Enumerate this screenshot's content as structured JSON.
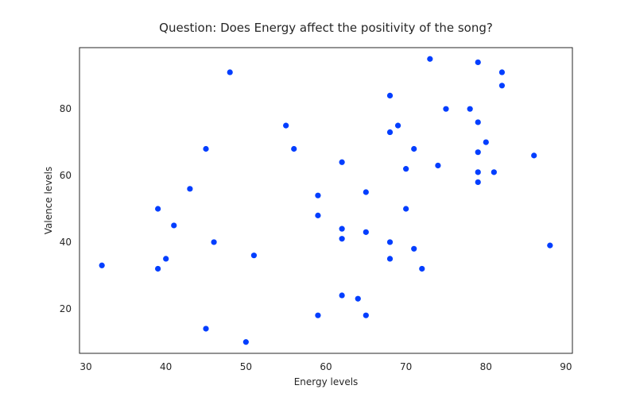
{
  "chart_data": {
    "type": "scatter",
    "title": "Question: Does Energy affect the positivity of the song?",
    "xlabel": "Energy levels",
    "ylabel": "Valence levels",
    "xlim": [
      29.2,
      90.8
    ],
    "ylim": [
      6.6,
      98.4
    ],
    "xticks": [
      30,
      40,
      50,
      60,
      70,
      80,
      90
    ],
    "yticks": [
      20,
      40,
      60,
      80
    ],
    "grid": false,
    "color": "#023eff",
    "points": [
      {
        "x": 32,
        "y": 33
      },
      {
        "x": 39,
        "y": 32
      },
      {
        "x": 39,
        "y": 50
      },
      {
        "x": 40,
        "y": 35
      },
      {
        "x": 41,
        "y": 45
      },
      {
        "x": 43,
        "y": 56
      },
      {
        "x": 45,
        "y": 68
      },
      {
        "x": 45,
        "y": 14
      },
      {
        "x": 46,
        "y": 40
      },
      {
        "x": 48,
        "y": 91
      },
      {
        "x": 50,
        "y": 10
      },
      {
        "x": 51,
        "y": 36
      },
      {
        "x": 55,
        "y": 75
      },
      {
        "x": 56,
        "y": 68
      },
      {
        "x": 59,
        "y": 54
      },
      {
        "x": 59,
        "y": 48
      },
      {
        "x": 59,
        "y": 18
      },
      {
        "x": 62,
        "y": 64
      },
      {
        "x": 62,
        "y": 44
      },
      {
        "x": 62,
        "y": 41
      },
      {
        "x": 62,
        "y": 24
      },
      {
        "x": 64,
        "y": 23
      },
      {
        "x": 65,
        "y": 55
      },
      {
        "x": 65,
        "y": 43
      },
      {
        "x": 65,
        "y": 18
      },
      {
        "x": 68,
        "y": 84
      },
      {
        "x": 68,
        "y": 73
      },
      {
        "x": 68,
        "y": 40
      },
      {
        "x": 68,
        "y": 35
      },
      {
        "x": 69,
        "y": 75
      },
      {
        "x": 70,
        "y": 62
      },
      {
        "x": 70,
        "y": 50
      },
      {
        "x": 71,
        "y": 68
      },
      {
        "x": 71,
        "y": 38
      },
      {
        "x": 72,
        "y": 32
      },
      {
        "x": 73,
        "y": 95
      },
      {
        "x": 74,
        "y": 63
      },
      {
        "x": 75,
        "y": 80
      },
      {
        "x": 78,
        "y": 80
      },
      {
        "x": 79,
        "y": 94
      },
      {
        "x": 79,
        "y": 76
      },
      {
        "x": 79,
        "y": 67
      },
      {
        "x": 79,
        "y": 61
      },
      {
        "x": 79,
        "y": 58
      },
      {
        "x": 80,
        "y": 70
      },
      {
        "x": 81,
        "y": 61
      },
      {
        "x": 82,
        "y": 91
      },
      {
        "x": 82,
        "y": 87
      },
      {
        "x": 86,
        "y": 66
      },
      {
        "x": 88,
        "y": 39
      }
    ]
  }
}
